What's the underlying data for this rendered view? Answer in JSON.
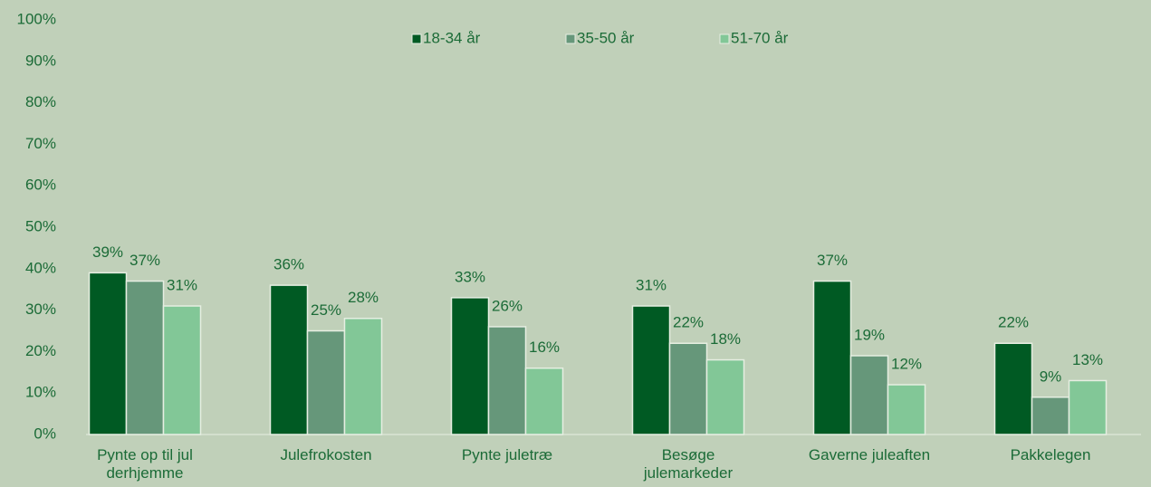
{
  "chart_data": {
    "type": "bar",
    "categories": [
      "Pynte op til jul derhjemme",
      "Julefrokosten",
      "Pynte juletræ",
      "Besøge julemarkeder",
      "Gaverne juleaften",
      "Pakkelegen"
    ],
    "series": [
      {
        "name": "18-34 år",
        "color": "#005a23",
        "values": [
          39,
          36,
          33,
          31,
          37,
          22
        ],
        "value_labels": [
          "39%",
          "36%",
          "33%",
          "31%",
          "37%",
          "22%"
        ]
      },
      {
        "name": "35-50 år",
        "color": "#66977a",
        "values": [
          37,
          25,
          26,
          22,
          19,
          9
        ],
        "value_labels": [
          "37%",
          "25%",
          "26%",
          "22%",
          "19%",
          "9%"
        ]
      },
      {
        "name": "51-70 år",
        "color": "#82c797",
        "values": [
          31,
          28,
          16,
          18,
          12,
          13
        ],
        "value_labels": [
          "31%",
          "28%",
          "16%",
          "18%",
          "12%",
          "13%"
        ]
      }
    ],
    "ylim": [
      0,
      100
    ],
    "yticks": [
      {
        "value": 0,
        "label": "0%"
      },
      {
        "value": 10,
        "label": "10%"
      },
      {
        "value": 20,
        "label": "20%"
      },
      {
        "value": 30,
        "label": "30%"
      },
      {
        "value": 40,
        "label": "40%"
      },
      {
        "value": 50,
        "label": "50%"
      },
      {
        "value": 60,
        "label": "60%"
      },
      {
        "value": 70,
        "label": "70%"
      },
      {
        "value": 80,
        "label": "80%"
      },
      {
        "value": 90,
        "label": "90%"
      },
      {
        "value": 100,
        "label": "100%"
      }
    ],
    "legend": "top"
  }
}
